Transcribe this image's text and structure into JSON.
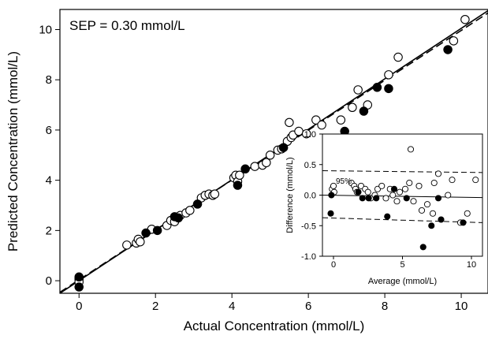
{
  "chart_data": [
    {
      "type": "scatter",
      "title": "",
      "annotation": "SEP = 0.30 mmol/L",
      "xlabel": "Actual Concentration (mmol/L)",
      "ylabel": "Predicted Concentration (mmol/L)",
      "xlim": [
        -0.5,
        10.7
      ],
      "ylim": [
        -0.5,
        10.8
      ],
      "xticks": [
        0,
        2,
        4,
        6,
        8,
        10
      ],
      "yticks": [
        0,
        2,
        4,
        6,
        8,
        10
      ],
      "lines": [
        {
          "style": "solid",
          "x": [
            -0.5,
            10.7
          ],
          "y": [
            -0.5,
            10.75
          ]
        },
        {
          "style": "dashed",
          "x": [
            -0.5,
            10.7
          ],
          "y": [
            -0.46,
            10.66
          ]
        }
      ],
      "series": [
        {
          "marker": "open",
          "points": [
            [
              0,
              0.1
            ],
            [
              0,
              0.05
            ],
            [
              0,
              -0.05
            ],
            [
              1.25,
              1.42
            ],
            [
              1.5,
              1.5
            ],
            [
              1.55,
              1.65
            ],
            [
              1.6,
              1.55
            ],
            [
              1.9,
              2.05
            ],
            [
              2.3,
              2.2
            ],
            [
              2.4,
              2.4
            ],
            [
              2.5,
              2.35
            ],
            [
              2.65,
              2.6
            ],
            [
              2.8,
              2.7
            ],
            [
              2.9,
              2.8
            ],
            [
              3.2,
              3.3
            ],
            [
              3.3,
              3.4
            ],
            [
              3.4,
              3.45
            ],
            [
              3.5,
              3.4
            ],
            [
              3.55,
              3.45
            ],
            [
              4.05,
              4.1
            ],
            [
              4.1,
              4.2
            ],
            [
              4.15,
              3.95
            ],
            [
              4.2,
              4.2
            ],
            [
              4.6,
              4.55
            ],
            [
              4.8,
              4.6
            ],
            [
              4.9,
              4.7
            ],
            [
              5.0,
              5.0
            ],
            [
              5.2,
              5.2
            ],
            [
              5.3,
              5.25
            ],
            [
              5.45,
              5.55
            ],
            [
              5.5,
              6.3
            ],
            [
              5.55,
              5.7
            ],
            [
              5.6,
              5.8
            ],
            [
              5.75,
              5.95
            ],
            [
              5.95,
              5.85
            ],
            [
              6.2,
              6.4
            ],
            [
              6.35,
              6.2
            ],
            [
              6.85,
              6.4
            ],
            [
              7.15,
              6.9
            ],
            [
              7.3,
              7.6
            ],
            [
              7.55,
              7.0
            ],
            [
              8.1,
              8.2
            ],
            [
              8.35,
              8.9
            ],
            [
              9.8,
              9.55
            ],
            [
              10.1,
              10.4
            ]
          ]
        },
        {
          "marker": "filled",
          "points": [
            [
              0,
              0.15
            ],
            [
              0,
              -0.25
            ],
            [
              1.75,
              1.9
            ],
            [
              2.05,
              2.0
            ],
            [
              2.5,
              2.55
            ],
            [
              2.6,
              2.5
            ],
            [
              3.1,
              3.05
            ],
            [
              4.15,
              3.8
            ],
            [
              4.35,
              4.45
            ],
            [
              5.35,
              5.3
            ],
            [
              6.95,
              5.95
            ],
            [
              7.45,
              6.75
            ],
            [
              7.8,
              7.7
            ],
            [
              8.1,
              7.65
            ],
            [
              9.65,
              9.2
            ]
          ]
        }
      ]
    },
    {
      "type": "scatter",
      "title": "",
      "xlabel": "Average (mmol/L)",
      "ylabel": "Difference (mmol/L)",
      "annotation": "95%",
      "xlim": [
        -0.8,
        10.8
      ],
      "ylim": [
        -1.0,
        1.0
      ],
      "xticks": [
        0,
        5,
        10
      ],
      "yticks": [
        "-1.0",
        "-0.5",
        "0.0",
        "0.5",
        "1.0"
      ],
      "lines": [
        {
          "style": "solid",
          "x": [
            -0.8,
            10.8
          ],
          "y": [
            0.0,
            -0.04
          ]
        },
        {
          "style": "dashed",
          "x": [
            -0.8,
            10.8
          ],
          "y": [
            0.4,
            0.37
          ]
        },
        {
          "style": "dashed",
          "x": [
            -0.8,
            10.8
          ],
          "y": [
            -0.37,
            -0.45
          ]
        }
      ],
      "series": [
        {
          "marker": "open",
          "points": [
            [
              -0.1,
              0.1
            ],
            [
              0,
              0.15
            ],
            [
              0.05,
              0.05
            ],
            [
              1.3,
              0.2
            ],
            [
              1.5,
              0.15
            ],
            [
              1.6,
              0.1
            ],
            [
              1.7,
              0.05
            ],
            [
              2.0,
              0.15
            ],
            [
              2.3,
              0.1
            ],
            [
              2.5,
              0.05
            ],
            [
              2.7,
              -0.05
            ],
            [
              3.0,
              0.0
            ],
            [
              3.2,
              0.1
            ],
            [
              3.5,
              0.15
            ],
            [
              3.8,
              -0.05
            ],
            [
              4.1,
              0.1
            ],
            [
              4.3,
              0.0
            ],
            [
              4.6,
              -0.1
            ],
            [
              4.8,
              0.05
            ],
            [
              5.2,
              0.1
            ],
            [
              5.5,
              0.2
            ],
            [
              5.6,
              0.75
            ],
            [
              5.8,
              -0.1
            ],
            [
              6.2,
              0.15
            ],
            [
              6.4,
              -0.25
            ],
            [
              6.8,
              -0.15
            ],
            [
              7.3,
              0.2
            ],
            [
              7.6,
              0.35
            ],
            [
              7.2,
              -0.3
            ],
            [
              8.3,
              0.0
            ],
            [
              8.6,
              0.25
            ],
            [
              9.2,
              -0.45
            ],
            [
              9.7,
              -0.3
            ],
            [
              10.3,
              0.25
            ]
          ]
        },
        {
          "marker": "filled",
          "points": [
            [
              -0.2,
              -0.3
            ],
            [
              -0.15,
              0.0
            ],
            [
              1.8,
              0.05
            ],
            [
              2.1,
              -0.05
            ],
            [
              2.55,
              -0.05
            ],
            [
              3.1,
              -0.05
            ],
            [
              3.9,
              -0.35
            ],
            [
              4.4,
              0.1
            ],
            [
              5.3,
              -0.05
            ],
            [
              6.5,
              -0.85
            ],
            [
              7.1,
              -0.5
            ],
            [
              7.8,
              -0.4
            ],
            [
              7.6,
              -0.05
            ],
            [
              9.4,
              -0.45
            ]
          ]
        }
      ]
    }
  ]
}
